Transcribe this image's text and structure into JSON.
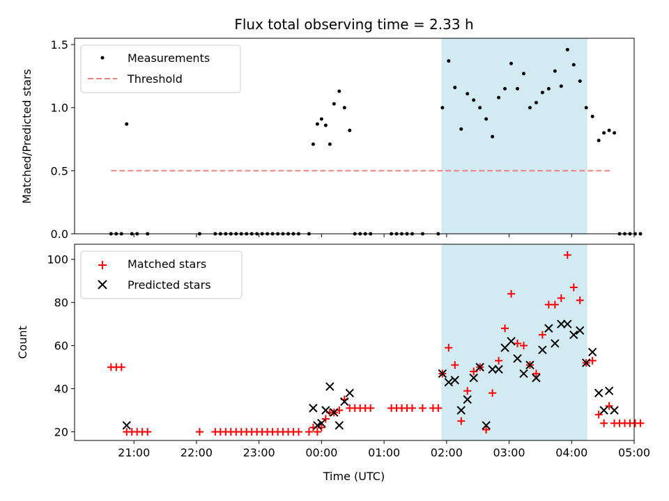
{
  "chart_data": {
    "type": "scatter",
    "title": "Flux total observing time = 2.33 h",
    "xlabel": "Time (UTC)",
    "x_ticks": [
      "21:00",
      "22:00",
      "23:00",
      "00:00",
      "01:00",
      "02:00",
      "03:00",
      "04:00",
      "05:00"
    ],
    "x_range": [
      "20:03",
      "05:00"
    ],
    "highlight_window": [
      "01:55",
      "04:15"
    ],
    "colors": {
      "highlight": "#add8e6",
      "measurements": "#000000",
      "threshold": "#f08080",
      "matched": "#ff0000",
      "predicted": "#000000"
    },
    "top_panel": {
      "ylabel": "Matched/Predicted stars",
      "ylim": [
        0,
        1.55
      ],
      "y_ticks": [
        "0.0",
        "0.5",
        "1.0",
        "1.5"
      ],
      "legend": {
        "placement": "upper left",
        "entries": [
          "Measurements",
          "Threshold"
        ]
      },
      "threshold": {
        "value": 0.5,
        "x_start": "20:38",
        "x_end": "04:38"
      },
      "measurements": [
        [
          "20:38",
          0
        ],
        [
          "20:43",
          0
        ],
        [
          "20:48",
          0
        ],
        [
          "20:53",
          0.87
        ],
        [
          "20:58",
          0
        ],
        [
          "21:03",
          0
        ],
        [
          "21:13",
          0
        ],
        [
          "22:03",
          0
        ],
        [
          "22:18",
          0
        ],
        [
          "22:23",
          0
        ],
        [
          "22:28",
          0
        ],
        [
          "22:33",
          0
        ],
        [
          "22:38",
          0
        ],
        [
          "22:43",
          0
        ],
        [
          "22:48",
          0
        ],
        [
          "22:53",
          0
        ],
        [
          "22:58",
          0
        ],
        [
          "23:03",
          0
        ],
        [
          "23:08",
          0
        ],
        [
          "23:13",
          0
        ],
        [
          "23:18",
          0
        ],
        [
          "23:23",
          0
        ],
        [
          "23:28",
          0
        ],
        [
          "23:33",
          0
        ],
        [
          "23:38",
          0
        ],
        [
          "23:48",
          0
        ],
        [
          "23:52",
          0.71
        ],
        [
          "23:56",
          0.87
        ],
        [
          "24:00",
          0.91
        ],
        [
          "24:04",
          0.86
        ],
        [
          "24:08",
          0.71
        ],
        [
          "24:12",
          1.03
        ],
        [
          "24:17",
          1.13
        ],
        [
          "24:22",
          1.0
        ],
        [
          "24:27",
          0.82
        ],
        [
          "24:32",
          0
        ],
        [
          "24:37",
          0
        ],
        [
          "24:42",
          0
        ],
        [
          "24:47",
          0
        ],
        [
          "25:07",
          0
        ],
        [
          "25:12",
          0
        ],
        [
          "25:17",
          0
        ],
        [
          "25:22",
          0
        ],
        [
          "25:27",
          0
        ],
        [
          "25:37",
          0
        ],
        [
          "25:52",
          0
        ],
        [
          "25:56",
          1.0
        ],
        [
          "26:02",
          1.37
        ],
        [
          "26:08",
          1.16
        ],
        [
          "26:14",
          0.83
        ],
        [
          "26:20",
          1.11
        ],
        [
          "26:26",
          1.06
        ],
        [
          "26:32",
          1.0
        ],
        [
          "26:38",
          0.91
        ],
        [
          "26:44",
          0.77
        ],
        [
          "26:50",
          1.08
        ],
        [
          "26:56",
          1.15
        ],
        [
          "27:02",
          1.35
        ],
        [
          "27:08",
          1.15
        ],
        [
          "27:14",
          1.27
        ],
        [
          "27:20",
          1.0
        ],
        [
          "27:26",
          1.04
        ],
        [
          "27:32",
          1.12
        ],
        [
          "27:38",
          1.15
        ],
        [
          "27:44",
          1.29
        ],
        [
          "27:50",
          1.17
        ],
        [
          "27:56",
          1.46
        ],
        [
          "28:02",
          1.34
        ],
        [
          "28:08",
          1.21
        ],
        [
          "28:14",
          1.0
        ],
        [
          "28:20",
          0.93
        ],
        [
          "28:26",
          0.74
        ],
        [
          "28:31",
          0.8
        ],
        [
          "28:36",
          0.82
        ],
        [
          "28:41",
          0.8
        ],
        [
          "28:46",
          0
        ],
        [
          "28:51",
          0
        ],
        [
          "28:56",
          0
        ],
        [
          "29:01",
          0
        ],
        [
          "29:06",
          0
        ]
      ]
    },
    "bottom_panel": {
      "ylabel": "Count",
      "ylim": [
        16,
        107
      ],
      "y_ticks": [
        "20",
        "40",
        "60",
        "80",
        "100"
      ],
      "legend": {
        "placement": "upper left",
        "entries": [
          "Matched stars",
          "Predicted stars"
        ]
      },
      "matched": [
        [
          "20:38",
          50
        ],
        [
          "20:43",
          50
        ],
        [
          "20:48",
          50
        ],
        [
          "20:53",
          20
        ],
        [
          "20:58",
          20
        ],
        [
          "21:03",
          20
        ],
        [
          "21:08",
          20
        ],
        [
          "21:13",
          20
        ],
        [
          "22:03",
          20
        ],
        [
          "22:18",
          20
        ],
        [
          "22:23",
          20
        ],
        [
          "22:28",
          20
        ],
        [
          "22:33",
          20
        ],
        [
          "22:38",
          20
        ],
        [
          "22:43",
          20
        ],
        [
          "22:48",
          20
        ],
        [
          "22:53",
          20
        ],
        [
          "22:58",
          20
        ],
        [
          "23:03",
          20
        ],
        [
          "23:08",
          20
        ],
        [
          "23:13",
          20
        ],
        [
          "23:18",
          20
        ],
        [
          "23:23",
          20
        ],
        [
          "23:28",
          20
        ],
        [
          "23:33",
          20
        ],
        [
          "23:38",
          20
        ],
        [
          "23:48",
          20
        ],
        [
          "23:52",
          22
        ],
        [
          "23:56",
          20
        ],
        [
          "24:00",
          22
        ],
        [
          "24:04",
          26
        ],
        [
          "24:08",
          29
        ],
        [
          "24:12",
          29
        ],
        [
          "24:17",
          30
        ],
        [
          "24:22",
          35
        ],
        [
          "24:27",
          31
        ],
        [
          "24:32",
          31
        ],
        [
          "24:37",
          31
        ],
        [
          "24:42",
          31
        ],
        [
          "24:47",
          31
        ],
        [
          "25:07",
          31
        ],
        [
          "25:12",
          31
        ],
        [
          "25:17",
          31
        ],
        [
          "25:22",
          31
        ],
        [
          "25:27",
          31
        ],
        [
          "25:37",
          31
        ],
        [
          "25:47",
          31
        ],
        [
          "25:52",
          31
        ],
        [
          "25:56",
          47
        ],
        [
          "26:02",
          59
        ],
        [
          "26:08",
          51
        ],
        [
          "26:14",
          25
        ],
        [
          "26:20",
          39
        ],
        [
          "26:26",
          48
        ],
        [
          "26:32",
          50
        ],
        [
          "26:38",
          21
        ],
        [
          "26:44",
          38
        ],
        [
          "26:50",
          53
        ],
        [
          "26:56",
          68
        ],
        [
          "27:02",
          84
        ],
        [
          "27:08",
          61
        ],
        [
          "27:14",
          60
        ],
        [
          "27:20",
          51
        ],
        [
          "27:26",
          47
        ],
        [
          "27:32",
          65
        ],
        [
          "27:38",
          79
        ],
        [
          "27:44",
          79
        ],
        [
          "27:50",
          82
        ],
        [
          "27:56",
          102
        ],
        [
          "28:02",
          87
        ],
        [
          "28:08",
          81
        ],
        [
          "28:14",
          52
        ],
        [
          "28:20",
          53
        ],
        [
          "28:26",
          28
        ],
        [
          "28:31",
          24
        ],
        [
          "28:36",
          32
        ],
        [
          "28:41",
          24
        ],
        [
          "28:46",
          24
        ],
        [
          "28:51",
          24
        ],
        [
          "28:56",
          24
        ],
        [
          "29:01",
          24
        ],
        [
          "29:06",
          24
        ]
      ],
      "predicted": [
        [
          "20:53",
          23
        ],
        [
          "23:52",
          31
        ],
        [
          "23:56",
          23
        ],
        [
          "24:00",
          24
        ],
        [
          "24:04",
          30
        ],
        [
          "24:08",
          41
        ],
        [
          "24:12",
          29
        ],
        [
          "24:17",
          23
        ],
        [
          "24:22",
          34
        ],
        [
          "24:27",
          38
        ],
        [
          "25:56",
          47
        ],
        [
          "26:02",
          43
        ],
        [
          "26:08",
          44
        ],
        [
          "26:14",
          30
        ],
        [
          "26:20",
          35
        ],
        [
          "26:26",
          45
        ],
        [
          "26:32",
          50
        ],
        [
          "26:38",
          23
        ],
        [
          "26:44",
          49
        ],
        [
          "26:50",
          49
        ],
        [
          "26:56",
          59
        ],
        [
          "27:02",
          62
        ],
        [
          "27:08",
          54
        ],
        [
          "27:14",
          47
        ],
        [
          "27:20",
          51
        ],
        [
          "27:26",
          45
        ],
        [
          "27:32",
          58
        ],
        [
          "27:38",
          68
        ],
        [
          "27:44",
          61
        ],
        [
          "27:50",
          70
        ],
        [
          "27:56",
          70
        ],
        [
          "28:02",
          65
        ],
        [
          "28:08",
          67
        ],
        [
          "28:14",
          52
        ],
        [
          "28:20",
          57
        ],
        [
          "28:26",
          38
        ],
        [
          "28:31",
          30
        ],
        [
          "28:36",
          39
        ],
        [
          "28:41",
          30
        ]
      ]
    }
  }
}
